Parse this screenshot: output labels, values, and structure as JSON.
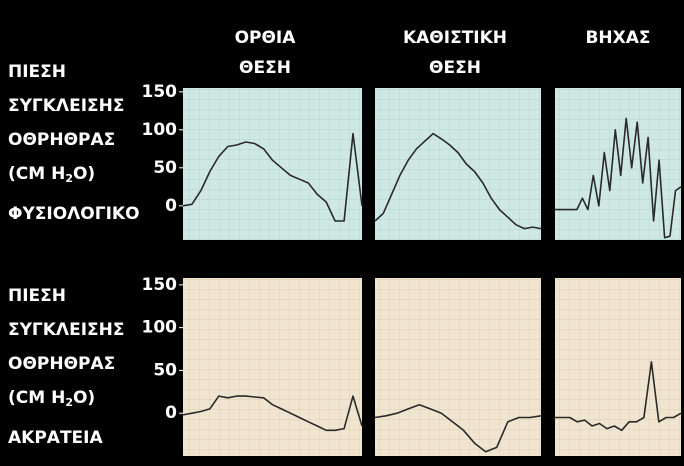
{
  "columns": [
    [
      "ΟΡΘΙΑ",
      "ΘΕΣΗ"
    ],
    [
      "ΚΑΘΙΣΤΙΚΗ",
      "ΘΕΣΗ"
    ],
    [
      "ΒΗΧΑΣ"
    ]
  ],
  "rows": [
    {
      "label": [
        "ΠΙΕΣΗ",
        "ΣΥΓΚΛΕΙΣΗΣ",
        "ΟΘΡΗΘΡΑΣ"
      ],
      "unit": [
        "(CM H",
        "2",
        "O)"
      ],
      "condition": "ΦΥΣΙΟΛΟΓΙΚΟ"
    },
    {
      "label": [
        "ΠΙΕΣΗ",
        "ΣΥΓΚΛΕΙΣΗΣ",
        "ΟΘΡΗΘΡΑΣ"
      ],
      "unit": [
        "(CM H",
        "2",
        "O)"
      ],
      "condition": "ΑΚΡΑΤΕΙΑ"
    }
  ],
  "chart_data": [
    {
      "type": "line",
      "color": "#2a2a2a",
      "x": [
        0,
        1,
        2,
        3,
        4,
        5,
        6,
        7,
        8,
        9,
        10,
        11,
        12,
        13,
        14,
        15,
        16,
        17,
        18,
        19,
        20
      ],
      "xlim": [
        0,
        20
      ],
      "values": [
        0,
        2,
        20,
        45,
        65,
        78,
        80,
        84,
        82,
        75,
        60,
        50,
        40,
        35,
        30,
        15,
        5,
        -20,
        -20,
        95,
        0
      ],
      "ylim": [
        -45,
        155
      ],
      "yticks": [
        0,
        50,
        100,
        150
      ]
    },
    {
      "type": "line",
      "color": "#2a2a2a",
      "x": [
        0,
        1,
        2,
        3,
        4,
        5,
        6,
        7,
        8,
        9,
        10,
        11,
        12,
        13,
        14,
        15,
        16,
        17,
        18,
        19,
        20
      ],
      "xlim": [
        0,
        20
      ],
      "values": [
        -20,
        -10,
        15,
        40,
        60,
        75,
        85,
        95,
        88,
        80,
        70,
        55,
        45,
        30,
        10,
        -5,
        -15,
        -25,
        -30,
        -28,
        -30
      ],
      "ylim": [
        -45,
        155
      ]
    },
    {
      "type": "line",
      "color": "#2a2a2a",
      "x": [
        0,
        1,
        2,
        3,
        4,
        5,
        6,
        7,
        8,
        9,
        10,
        11,
        12,
        13,
        14,
        15,
        16,
        17,
        18,
        19,
        20,
        21,
        22,
        23
      ],
      "xlim": [
        0,
        23
      ],
      "values": [
        -5,
        -5,
        -5,
        -5,
        -5,
        10,
        -5,
        40,
        0,
        70,
        20,
        100,
        40,
        115,
        50,
        110,
        30,
        90,
        -20,
        60,
        -42,
        -40,
        20,
        25
      ],
      "ylim": [
        -45,
        155
      ]
    },
    {
      "type": "line",
      "color": "#2a2a2a",
      "x": [
        0,
        1,
        2,
        3,
        4,
        5,
        6,
        7,
        8,
        9,
        10,
        11,
        12,
        13,
        14,
        15,
        16,
        17,
        18,
        19,
        20
      ],
      "xlim": [
        0,
        20
      ],
      "values": [
        -2,
        0,
        2,
        5,
        20,
        18,
        20,
        20,
        19,
        18,
        10,
        5,
        0,
        -5,
        -10,
        -15,
        -20,
        -20,
        -18,
        20,
        -15
      ],
      "ylim": [
        -50,
        158
      ],
      "yticks": [
        0,
        50,
        100,
        150
      ]
    },
    {
      "type": "line",
      "color": "#2a2a2a",
      "x": [
        0,
        1,
        2,
        3,
        4,
        5,
        6,
        7,
        8,
        9,
        10,
        11,
        12,
        13,
        14,
        15
      ],
      "xlim": [
        0,
        15
      ],
      "values": [
        -5,
        -3,
        0,
        5,
        10,
        5,
        0,
        -10,
        -20,
        -35,
        -45,
        -40,
        -10,
        -5,
        -5,
        -3
      ],
      "ylim": [
        -50,
        158
      ]
    },
    {
      "type": "line",
      "color": "#2a2a2a",
      "x": [
        0,
        1,
        2,
        3,
        4,
        5,
        6,
        7,
        8,
        9,
        10,
        11,
        12,
        13,
        14,
        15,
        16,
        17
      ],
      "xlim": [
        0,
        17
      ],
      "values": [
        -5,
        -5,
        -5,
        -10,
        -8,
        -15,
        -12,
        -18,
        -15,
        -20,
        -10,
        -10,
        -5,
        60,
        -10,
        -5,
        -5,
        0
      ],
      "ylim": [
        -50,
        158
      ]
    }
  ]
}
